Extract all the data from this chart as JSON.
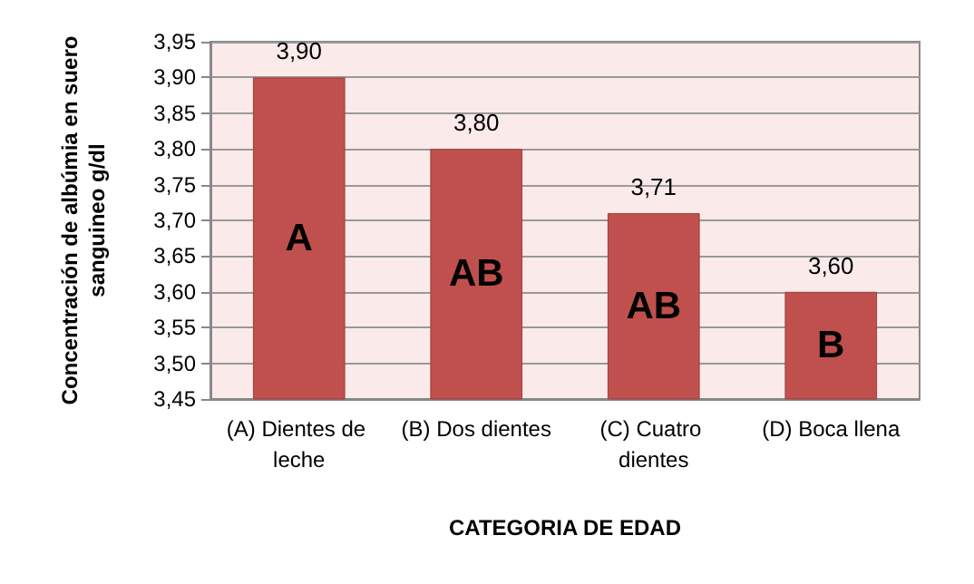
{
  "chart_data": {
    "type": "bar",
    "xlabel": "CATEGORIA DE EDAD",
    "ylabel": "Concentración de albúmia en suero\nsanguineo g/dl",
    "categories": [
      "(A) Dientes de leche",
      "(B) Dos dientes",
      "(C) Cuatro dientes",
      "(D) Boca llena"
    ],
    "values": [
      3.9,
      3.8,
      3.71,
      3.6
    ],
    "color": "#c0504d",
    "value_labels": [
      "3,90",
      "3,80",
      "3,71",
      "3,60"
    ],
    "ylim": [
      3.45,
      3.95
    ],
    "yticks": [
      {
        "value": 3.45,
        "label": "3,45"
      },
      {
        "value": 3.5,
        "label": "3,50"
      },
      {
        "value": 3.55,
        "label": "3,55"
      },
      {
        "value": 3.6,
        "label": "3,60"
      },
      {
        "value": 3.65,
        "label": "3,65"
      },
      {
        "value": 3.7,
        "label": "3,70"
      },
      {
        "value": 3.75,
        "label": "3,75"
      },
      {
        "value": 3.8,
        "label": "3,80"
      },
      {
        "value": 3.85,
        "label": "3,85"
      },
      {
        "value": 3.9,
        "label": "3,90"
      },
      {
        "value": 3.95,
        "label": "3,95"
      }
    ],
    "annotations": [
      "A",
      "AB",
      "AB",
      "B"
    ],
    "grid": "y"
  }
}
